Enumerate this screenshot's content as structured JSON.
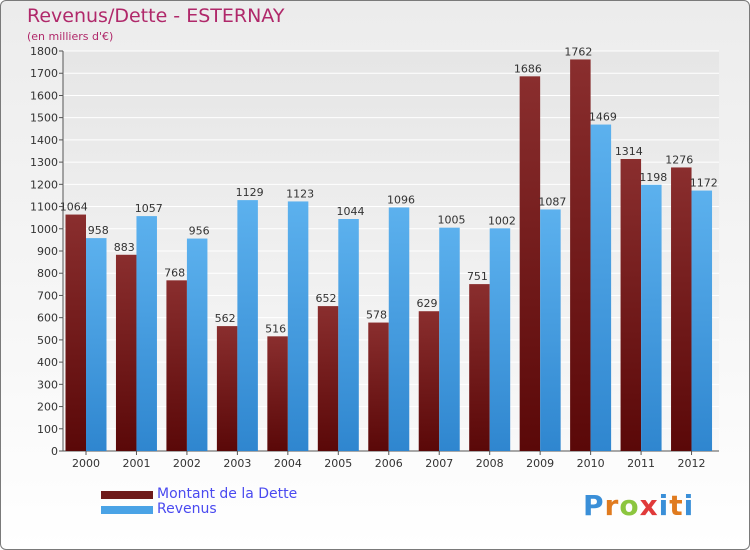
{
  "title": "Revenus/Dette - ESTERNAY",
  "subtitle": "(en milliers d'€)",
  "logo_text": "Proxiti",
  "colors": {
    "debt": "#6e1a1a",
    "revenue": "#4aa3e6",
    "title": "#b0286a",
    "legend_text": "#4a4af0"
  },
  "chart_data": {
    "type": "bar",
    "categories": [
      "2000",
      "2001",
      "2002",
      "2003",
      "2004",
      "2005",
      "2006",
      "2007",
      "2008",
      "2009",
      "2010",
      "2011",
      "2012"
    ],
    "series": [
      {
        "name": "Montant de la Dette",
        "values": [
          1064,
          883,
          768,
          562,
          516,
          652,
          578,
          629,
          751,
          1686,
          1762,
          1314,
          1276
        ]
      },
      {
        "name": "Revenus",
        "values": [
          958,
          1057,
          956,
          1129,
          1123,
          1044,
          1096,
          1005,
          1002,
          1087,
          1469,
          1198,
          1172
        ]
      }
    ],
    "y_ticks": [
      0,
      100,
      200,
      300,
      400,
      500,
      600,
      700,
      800,
      900,
      1000,
      1100,
      1200,
      1300,
      1400,
      1500,
      1600,
      1700,
      1800
    ],
    "ylim": [
      0,
      1800
    ],
    "grid": true,
    "legend_position": "bottom-left"
  }
}
